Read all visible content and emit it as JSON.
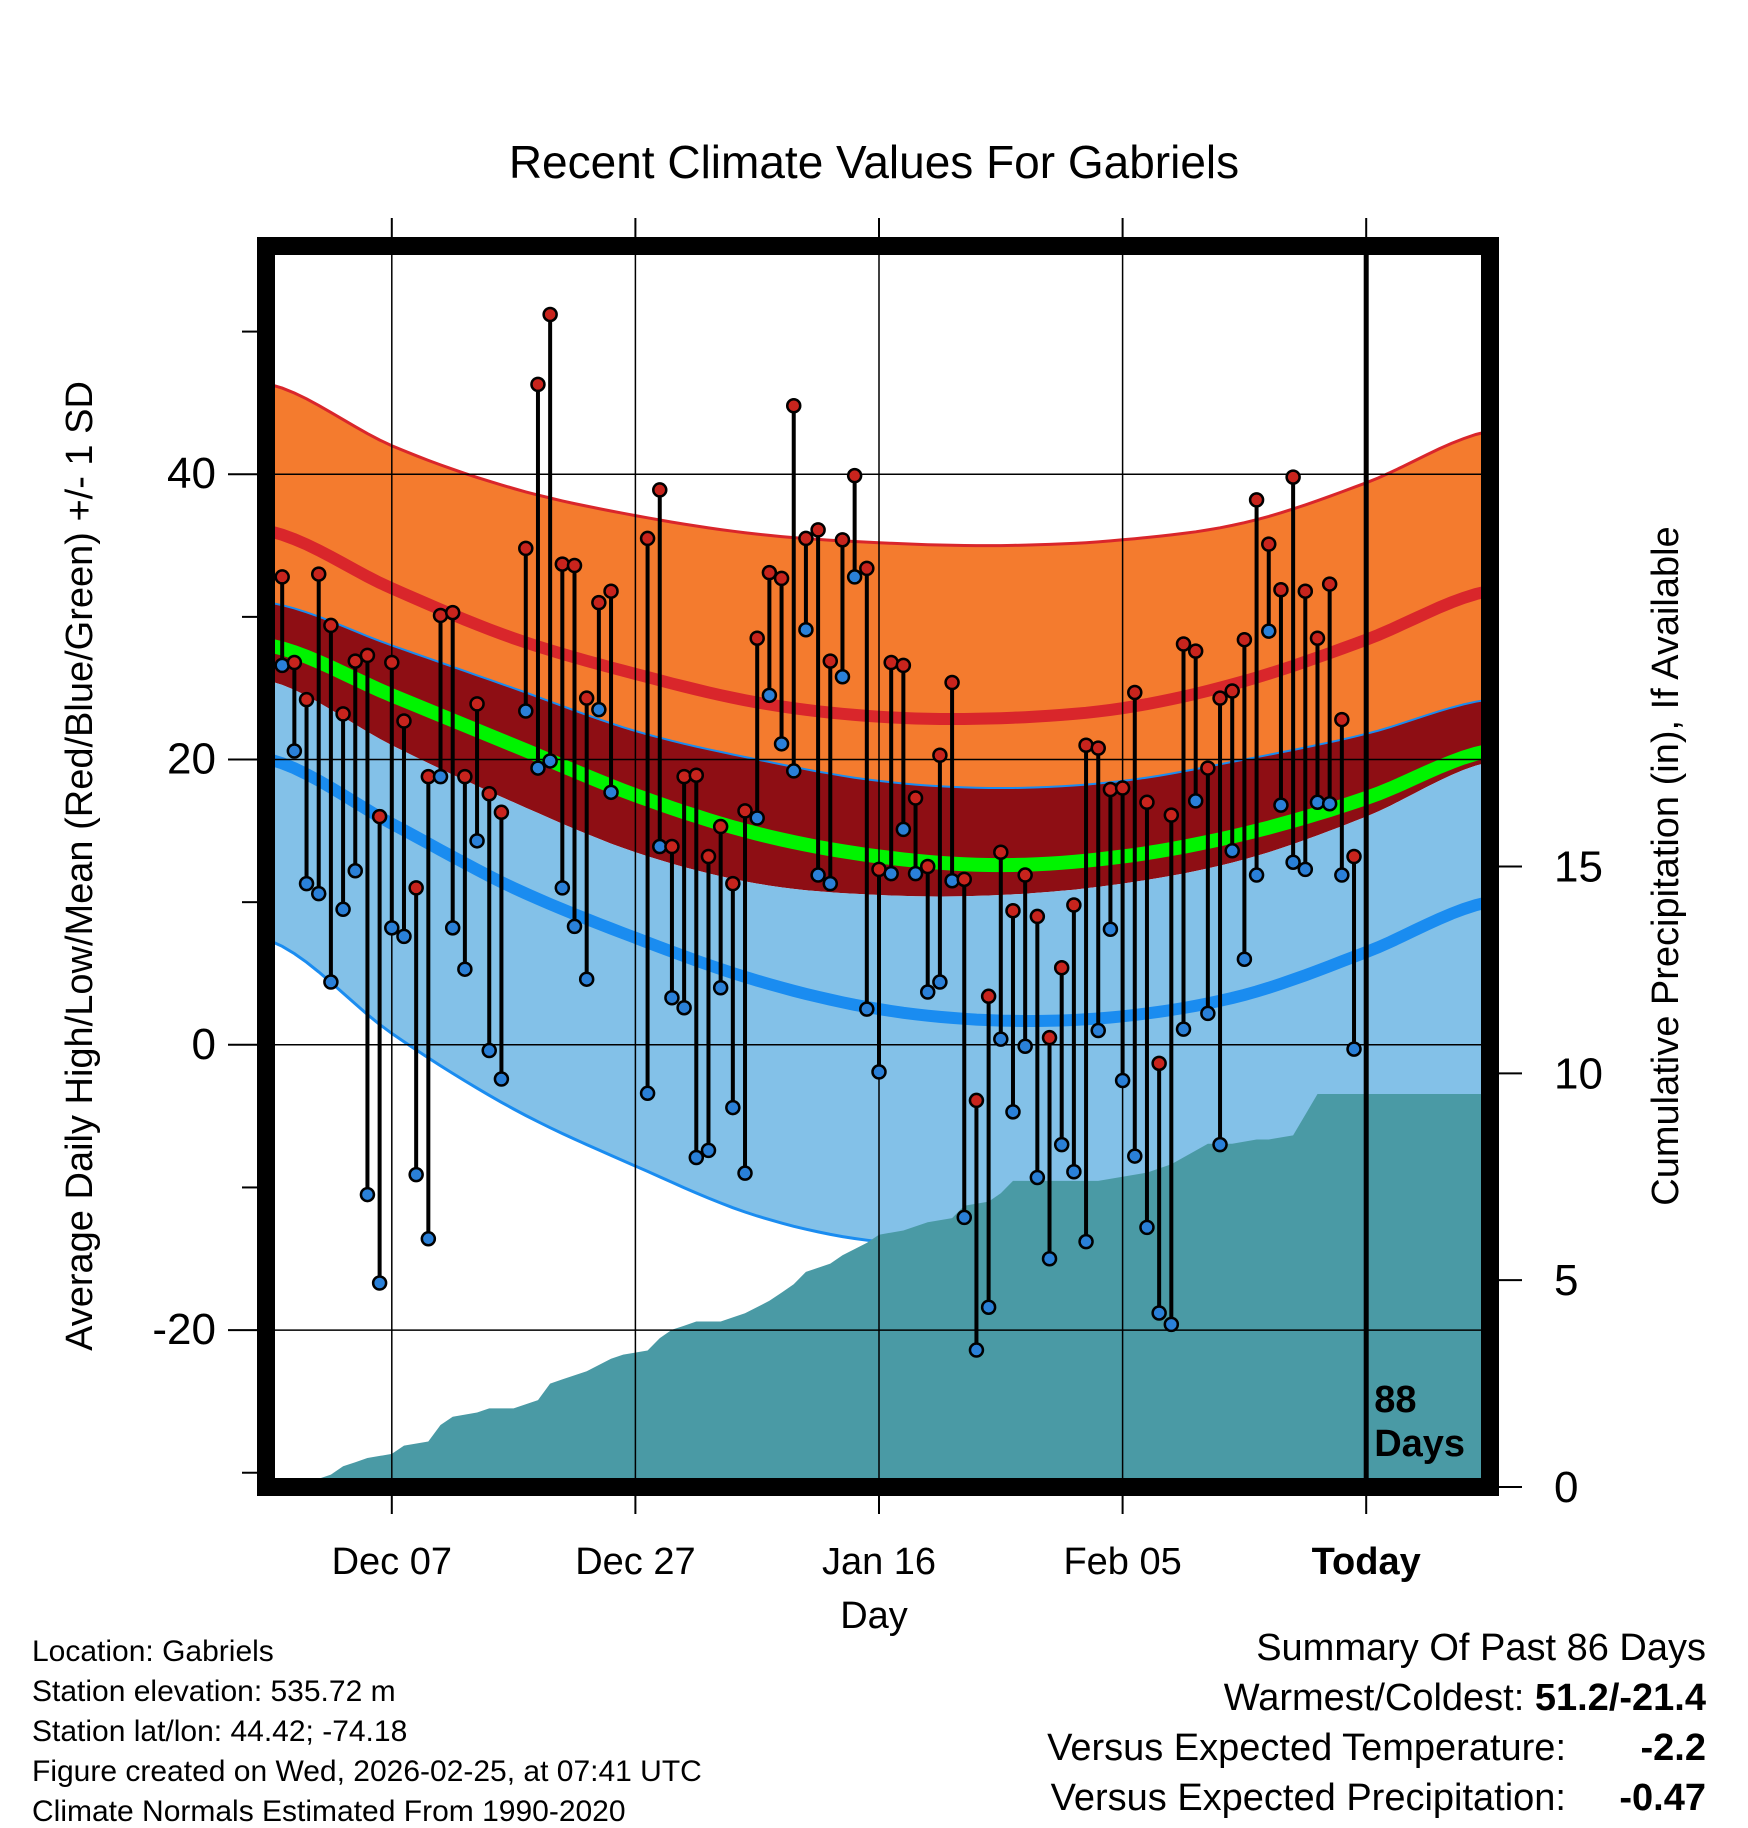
{
  "chart_data": {
    "type": "line",
    "title": "Recent Climate Values For Gabriels",
    "xlabel": "Day",
    "ylabel_left": "Average Daily High/Low/Mean (Red/Blue/Green) +/- 1 SD",
    "ylabel_right": "Cumulative Precipitation (in), If Available",
    "x_ticks": [
      {
        "label": "Dec 07",
        "day": 9
      },
      {
        "label": "Dec 27",
        "day": 29
      },
      {
        "label": "Jan 16",
        "day": 49
      },
      {
        "label": "Feb 05",
        "day": 69
      },
      {
        "label": "Today",
        "day": 89
      }
    ],
    "xlim": [
      -1,
      99
    ],
    "today_day": 89,
    "days_label": "88 Days",
    "y_left_ticks": [
      "40",
      "20",
      "0",
      "-20"
    ],
    "y_left_tick_values": [
      40,
      20,
      0,
      -20
    ],
    "ylim": [
      -31,
      56
    ],
    "y_right_ticks": [
      "15",
      "10",
      "5",
      "0"
    ],
    "y_right_tick_values": [
      15,
      10,
      5,
      0
    ],
    "precip_range": [
      0,
      30
    ],
    "normals": {
      "days": [
        -1,
        9,
        19,
        29,
        39,
        49,
        59,
        69,
        79,
        89,
        99
      ],
      "high_upper": [
        46.3,
        42.0,
        39.0,
        37.1,
        35.8,
        35.2,
        35.0,
        35.4,
        36.6,
        39.4,
        43.0
      ],
      "high_mean": [
        36.0,
        32.0,
        28.5,
        26.0,
        24.0,
        23.0,
        22.9,
        23.6,
        25.5,
        28.4,
        31.8
      ],
      "mean_upper": [
        31.0,
        28.0,
        25.0,
        22.0,
        20.0,
        18.5,
        18.0,
        18.5,
        20.0,
        21.8,
        24.2
      ],
      "mean_line": [
        28.0,
        24.5,
        21.0,
        17.5,
        14.8,
        13.2,
        12.6,
        13.2,
        14.8,
        17.3,
        20.6
      ],
      "mean_lower": [
        25.5,
        21.0,
        17.0,
        13.5,
        11.3,
        10.5,
        10.5,
        11.3,
        13.0,
        16.0,
        19.8
      ],
      "low_mean": [
        20.0,
        15.5,
        11.0,
        7.5,
        4.5,
        2.5,
        1.7,
        2.0,
        3.5,
        6.5,
        10.0
      ],
      "low_lower": [
        7.3,
        0.8,
        -4.5,
        -8.5,
        -12.0,
        -13.8,
        -13.8,
        -12.3,
        -10.5,
        -8.0,
        -4.5
      ]
    },
    "daily_observations": [
      {
        "day": 0,
        "high": 32.8,
        "low": 26.6
      },
      {
        "day": 1,
        "high": 26.8,
        "low": 20.6
      },
      {
        "day": 2,
        "high": 24.2,
        "low": 11.3
      },
      {
        "day": 3,
        "high": 33.0,
        "low": 10.6
      },
      {
        "day": 4,
        "high": 29.4,
        "low": 4.4
      },
      {
        "day": 5,
        "high": 23.2,
        "low": 9.5
      },
      {
        "day": 6,
        "high": 26.9,
        "low": 12.2
      },
      {
        "day": 7,
        "high": 27.3,
        "low": -10.5
      },
      {
        "day": 8,
        "high": 16.0,
        "low": -16.7
      },
      {
        "day": 9,
        "high": 26.8,
        "low": 8.2
      },
      {
        "day": 10,
        "high": 22.7,
        "low": 7.6
      },
      {
        "day": 11,
        "high": 11.0,
        "low": -9.1
      },
      {
        "day": 12,
        "high": 18.8,
        "low": -13.6
      },
      {
        "day": 13,
        "high": 30.1,
        "low": 18.8
      },
      {
        "day": 14,
        "high": 30.3,
        "low": 8.2
      },
      {
        "day": 15,
        "high": 18.8,
        "low": 5.3
      },
      {
        "day": 16,
        "high": 23.9,
        "low": 14.3
      },
      {
        "day": 17,
        "high": 17.6,
        "low": -0.4
      },
      {
        "day": 18,
        "high": 16.3,
        "low": -2.4
      },
      {
        "day": 20,
        "high": 34.8,
        "low": 23.4
      },
      {
        "day": 21,
        "high": 46.3,
        "low": 19.4
      },
      {
        "day": 22,
        "high": 51.2,
        "low": 19.9
      },
      {
        "day": 23,
        "high": 33.7,
        "low": 11.0
      },
      {
        "day": 24,
        "high": 33.6,
        "low": 8.3
      },
      {
        "day": 25,
        "high": 24.3,
        "low": 4.6
      },
      {
        "day": 26,
        "high": 31.0,
        "low": 23.5
      },
      {
        "day": 27,
        "high": 31.8,
        "low": 17.7
      },
      {
        "day": 30,
        "high": 35.5,
        "low": -3.4
      },
      {
        "day": 31,
        "high": 38.9,
        "low": 13.9
      },
      {
        "day": 32,
        "high": 13.9,
        "low": 3.3
      },
      {
        "day": 33,
        "high": 18.8,
        "low": 2.6
      },
      {
        "day": 34,
        "high": 18.9,
        "low": -7.9
      },
      {
        "day": 35,
        "high": 13.2,
        "low": -7.4
      },
      {
        "day": 36,
        "high": 15.3,
        "low": 4.0
      },
      {
        "day": 37,
        "high": 11.3,
        "low": -4.4
      },
      {
        "day": 38,
        "high": 16.4,
        "low": -9.0
      },
      {
        "day": 39,
        "high": 28.5,
        "low": 15.9
      },
      {
        "day": 40,
        "high": 33.1,
        "low": 24.5
      },
      {
        "day": 41,
        "high": 32.7,
        "low": 21.1
      },
      {
        "day": 42,
        "high": 44.8,
        "low": 19.2
      },
      {
        "day": 43,
        "high": 35.5,
        "low": 29.1
      },
      {
        "day": 44,
        "high": 36.1,
        "low": 11.9
      },
      {
        "day": 45,
        "high": 26.9,
        "low": 11.3
      },
      {
        "day": 46,
        "high": 35.4,
        "low": 25.8
      },
      {
        "day": 47,
        "high": 39.9,
        "low": 32.8
      },
      {
        "day": 48,
        "high": 33.4,
        "low": 2.5
      },
      {
        "day": 49,
        "high": 12.3,
        "low": -1.9
      },
      {
        "day": 50,
        "high": 26.8,
        "low": 12.0
      },
      {
        "day": 51,
        "high": 26.6,
        "low": 15.1
      },
      {
        "day": 52,
        "high": 17.3,
        "low": 12.0
      },
      {
        "day": 53,
        "high": 12.5,
        "low": 3.7
      },
      {
        "day": 54,
        "high": 20.3,
        "low": 4.4
      },
      {
        "day": 55,
        "high": 25.4,
        "low": 11.5
      },
      {
        "day": 56,
        "high": 11.6,
        "low": -12.1
      },
      {
        "day": 57,
        "high": -3.9,
        "low": -21.4
      },
      {
        "day": 58,
        "high": 3.4,
        "low": -18.4
      },
      {
        "day": 59,
        "high": 13.5,
        "low": 0.4
      },
      {
        "day": 60,
        "high": 9.4,
        "low": -4.7
      },
      {
        "day": 61,
        "high": 11.9,
        "low": -0.1
      },
      {
        "day": 62,
        "high": 9.0,
        "low": -9.3
      },
      {
        "day": 63,
        "high": 0.5,
        "low": -15.0
      },
      {
        "day": 64,
        "high": 5.4,
        "low": -7.0
      },
      {
        "day": 65,
        "high": 9.8,
        "low": -8.9
      },
      {
        "day": 66,
        "high": 21.0,
        "low": -13.8
      },
      {
        "day": 67,
        "high": 20.8,
        "low": 1.0
      },
      {
        "day": 68,
        "high": 17.9,
        "low": 8.1
      },
      {
        "day": 69,
        "high": 18.0,
        "low": -2.5
      },
      {
        "day": 70,
        "high": 24.7,
        "low": -7.8
      },
      {
        "day": 71,
        "high": 17.0,
        "low": -12.8
      },
      {
        "day": 72,
        "high": -1.3,
        "low": -18.8
      },
      {
        "day": 73,
        "high": 16.1,
        "low": -19.6
      },
      {
        "day": 74,
        "high": 28.1,
        "low": 1.1
      },
      {
        "day": 75,
        "high": 27.6,
        "low": 17.1
      },
      {
        "day": 76,
        "high": 19.4,
        "low": 2.2
      },
      {
        "day": 77,
        "high": 24.3,
        "low": -7.0
      },
      {
        "day": 78,
        "high": 24.8,
        "low": 13.6
      },
      {
        "day": 79,
        "high": 28.4,
        "low": 6.0
      },
      {
        "day": 80,
        "high": 38.2,
        "low": 11.9
      },
      {
        "day": 81,
        "high": 35.1,
        "low": 29.0
      },
      {
        "day": 82,
        "high": 31.9,
        "low": 16.8
      },
      {
        "day": 83,
        "high": 39.8,
        "low": 12.8
      },
      {
        "day": 84,
        "high": 31.8,
        "low": 12.3
      },
      {
        "day": 85,
        "high": 28.5,
        "low": 17.0
      },
      {
        "day": 86,
        "high": 32.3,
        "low": 16.9
      },
      {
        "day": 87,
        "high": 22.8,
        "low": 11.9
      },
      {
        "day": 88,
        "high": 13.2,
        "low": -0.3
      }
    ],
    "cumulative_precip": {
      "days": [
        0,
        2,
        4,
        5,
        6,
        7,
        9,
        10,
        12,
        13,
        14,
        16,
        17,
        19,
        20,
        21,
        22,
        23,
        25,
        27,
        28,
        30,
        31,
        32,
        33,
        34,
        35,
        36,
        37,
        38,
        40,
        41,
        42,
        43,
        45,
        46,
        48,
        49,
        51,
        53,
        55,
        56,
        58,
        59,
        60,
        63,
        65,
        67,
        69,
        71,
        73,
        76,
        78,
        80,
        81,
        83,
        84,
        85,
        99
      ],
      "values": [
        0.0,
        0.1,
        0.3,
        0.5,
        0.6,
        0.7,
        0.8,
        1.0,
        1.1,
        1.5,
        1.7,
        1.8,
        1.9,
        1.9,
        2.0,
        2.1,
        2.5,
        2.6,
        2.8,
        3.1,
        3.2,
        3.3,
        3.6,
        3.8,
        3.9,
        4.0,
        4.0,
        4.0,
        4.1,
        4.2,
        4.5,
        4.7,
        4.9,
        5.2,
        5.4,
        5.6,
        5.9,
        6.1,
        6.2,
        6.4,
        6.5,
        6.8,
        6.9,
        7.1,
        7.4,
        7.4,
        7.4,
        7.4,
        7.5,
        7.6,
        7.8,
        8.3,
        8.3,
        8.4,
        8.4,
        8.5,
        9.0,
        9.5,
        9.5
      ]
    }
  },
  "footer_left": {
    "location": "Location: Gabriels",
    "elevation": "Station elevation: 535.72 m",
    "latlon": "Station lat/lon: 44.42; -74.18",
    "created": "Figure created on Wed, 2026-02-25, at 07:41 UTC",
    "normals_period": "Climate Normals Estimated From 1990-2020"
  },
  "summary": {
    "heading": "Summary Of Past 86 Days",
    "extremes_label": "Warmest/Coldest: ",
    "extremes_value": "51.2/-21.4",
    "temp_label": "Versus Expected Temperature:",
    "temp_value": "-2.2",
    "precip_label": "Versus Expected Precipitation:",
    "precip_value": "-0.47"
  },
  "colors": {
    "high_band": "#f47b2e",
    "high_line": "#d9262b",
    "mean_band": "#8e0e14",
    "mean_line": "#00f400",
    "low_band": "#83c1e8",
    "low_line": "#1a8cf0",
    "precip_fill": "#4a9aa5",
    "high_dot": "#c8241d",
    "low_dot": "#2a80d8",
    "temp_value": "#2a8ae0",
    "precip_value": "#9a4a22"
  }
}
